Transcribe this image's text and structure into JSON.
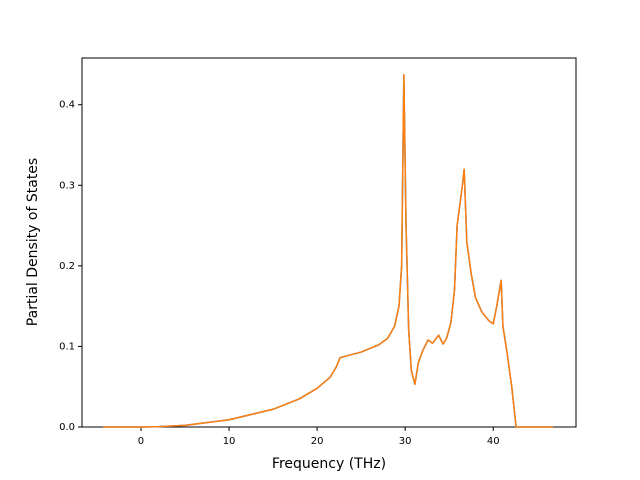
{
  "chart_data": {
    "type": "line",
    "xlabel": "Frequency (THz)",
    "ylabel": "Partial Density of States",
    "x": [
      -4.3,
      0,
      2,
      5,
      10,
      15,
      18,
      20,
      21.5,
      22.2,
      22.6,
      25,
      27,
      28,
      28.8,
      29.3,
      29.6,
      29.85,
      30.1,
      30.4,
      30.7,
      31.1,
      31.5,
      32,
      32.6,
      33.1,
      33.8,
      34.3,
      34.7,
      35.2,
      35.6,
      35.9,
      36.5,
      36.7,
      37,
      37.5,
      38,
      38.7,
      39.5,
      40,
      40.4,
      40.9,
      41.1,
      41.6,
      42.1,
      42.6,
      46.8
    ],
    "series": [
      {
        "color": "#1f77b4",
        "values": [
          0,
          0,
          0.0005,
          0.002,
          0.009,
          0.022,
          0.035,
          0.048,
          0.062,
          0.075,
          0.086,
          0.093,
          0.102,
          0.11,
          0.125,
          0.15,
          0.2,
          0.437,
          0.25,
          0.12,
          0.07,
          0.053,
          0.08,
          0.095,
          0.108,
          0.104,
          0.114,
          0.103,
          0.11,
          0.13,
          0.17,
          0.25,
          0.3,
          0.32,
          0.23,
          0.19,
          0.16,
          0.143,
          0.132,
          0.128,
          0.15,
          0.182,
          0.125,
          0.09,
          0.05,
          0,
          0
        ]
      },
      {
        "color": "#ff7f0e",
        "values": [
          0,
          0,
          0.0005,
          0.002,
          0.009,
          0.022,
          0.035,
          0.048,
          0.062,
          0.075,
          0.086,
          0.093,
          0.102,
          0.11,
          0.125,
          0.15,
          0.2,
          0.437,
          0.25,
          0.12,
          0.07,
          0.053,
          0.08,
          0.095,
          0.108,
          0.104,
          0.114,
          0.103,
          0.11,
          0.13,
          0.17,
          0.25,
          0.3,
          0.32,
          0.23,
          0.19,
          0.16,
          0.143,
          0.132,
          0.128,
          0.15,
          0.182,
          0.125,
          0.09,
          0.05,
          0,
          0
        ]
      }
    ],
    "xlim": [
      -6.7,
      49.4
    ],
    "xticks": [
      0,
      10,
      20,
      30,
      40
    ],
    "ylim": [
      0,
      0.458
    ],
    "yticks": [
      {
        "value": 0,
        "label": "0.0"
      },
      0.1,
      0.2,
      0.3,
      0.4
    ],
    "grid": false
  }
}
